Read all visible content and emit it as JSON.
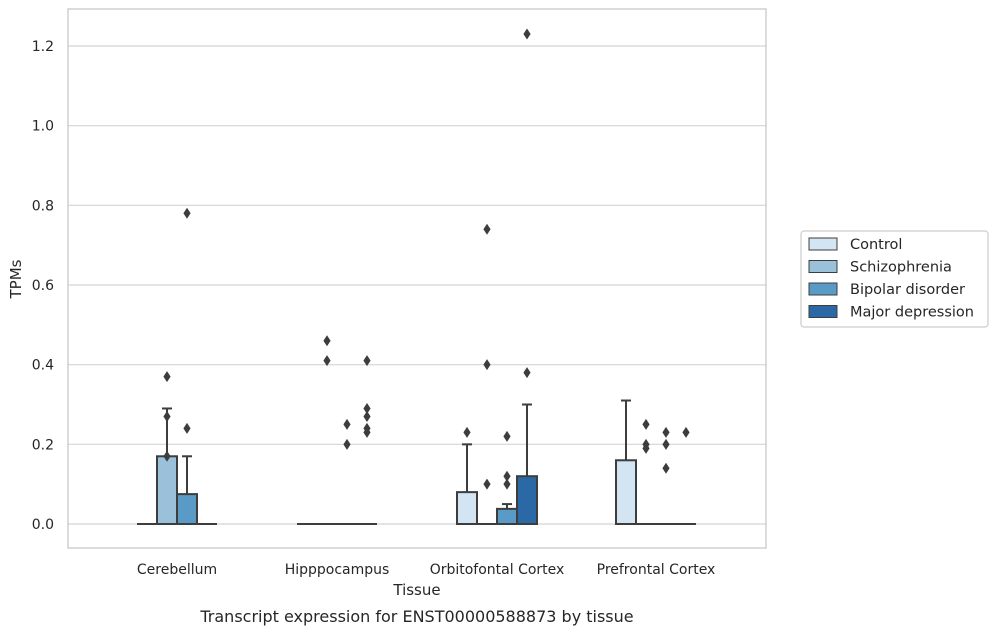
{
  "chart_data": {
    "type": "box",
    "xlabel": "Tissue",
    "ylabel": "TPMs",
    "caption": "Transcript expression for ENST00000588873 by tissue",
    "ylim": [
      -0.06,
      1.29
    ],
    "yticks": [
      0.0,
      0.2,
      0.4,
      0.6,
      0.8,
      1.0,
      1.2
    ],
    "ytick_labels": [
      "0.0",
      "0.2",
      "0.4",
      "0.6",
      "0.8",
      "1.0",
      "1.2"
    ],
    "grid": "horizontal",
    "legend_position": "right",
    "categories": [
      "Cerebellum",
      "Hipppocampus",
      "Orbitofontal Cortex",
      "Prefrontal Cortex"
    ],
    "series": [
      {
        "name": "Control",
        "color": "#d3e4f3",
        "boxes": [
          {
            "q1": 0.0,
            "median": 0.0,
            "q3": 0.0,
            "whisker_low": 0.0,
            "whisker_high": 0.0,
            "outliers": []
          },
          {
            "q1": 0.0,
            "median": 0.0,
            "q3": 0.0,
            "whisker_low": 0.0,
            "whisker_high": 0.0,
            "outliers": []
          },
          {
            "q1": 0.0,
            "median": 0.0,
            "q3": 0.08,
            "whisker_low": 0.0,
            "whisker_high": 0.2,
            "outliers": [
              0.23
            ]
          },
          {
            "q1": 0.0,
            "median": 0.0,
            "q3": 0.16,
            "whisker_low": 0.0,
            "whisker_high": 0.31,
            "outliers": []
          }
        ]
      },
      {
        "name": "Schizophrenia",
        "color": "#9ac0da",
        "boxes": [
          {
            "q1": 0.0,
            "median": 0.0,
            "q3": 0.17,
            "whisker_low": 0.0,
            "whisker_high": 0.29,
            "outliers": [
              0.37,
              0.27,
              0.17
            ]
          },
          {
            "q1": 0.0,
            "median": 0.0,
            "q3": 0.0,
            "whisker_low": 0.0,
            "whisker_high": 0.0,
            "outliers": [
              0.46,
              0.41
            ]
          },
          {
            "q1": 0.0,
            "median": 0.0,
            "q3": 0.0,
            "whisker_low": 0.0,
            "whisker_high": 0.0,
            "outliers": [
              0.74,
              0.4,
              0.1
            ]
          },
          {
            "q1": 0.0,
            "median": 0.0,
            "q3": 0.0,
            "whisker_low": 0.0,
            "whisker_high": 0.0,
            "outliers": [
              0.25,
              0.2,
              0.19
            ]
          }
        ]
      },
      {
        "name": "Bipolar disorder",
        "color": "#5a9ac6",
        "boxes": [
          {
            "q1": 0.0,
            "median": 0.0,
            "q3": 0.075,
            "whisker_low": 0.0,
            "whisker_high": 0.17,
            "outliers": [
              0.78,
              0.24
            ]
          },
          {
            "q1": 0.0,
            "median": 0.0,
            "q3": 0.0,
            "whisker_low": 0.0,
            "whisker_high": 0.0,
            "outliers": [
              0.25,
              0.2
            ]
          },
          {
            "q1": 0.0,
            "median": 0.0,
            "q3": 0.038,
            "whisker_low": 0.0,
            "whisker_high": 0.05,
            "outliers": [
              0.22,
              0.12,
              0.1
            ]
          },
          {
            "q1": 0.0,
            "median": 0.0,
            "q3": 0.0,
            "whisker_low": 0.0,
            "whisker_high": 0.0,
            "outliers": [
              0.23,
              0.2,
              0.14
            ]
          }
        ]
      },
      {
        "name": "Major depression",
        "color": "#2b69a6",
        "boxes": [
          {
            "q1": 0.0,
            "median": 0.0,
            "q3": 0.0,
            "whisker_low": 0.0,
            "whisker_high": 0.0,
            "outliers": []
          },
          {
            "q1": 0.0,
            "median": 0.0,
            "q3": 0.0,
            "whisker_low": 0.0,
            "whisker_high": 0.0,
            "outliers": [
              0.41,
              0.23
            ]
          },
          {
            "q1": 0.0,
            "median": 0.0,
            "q3": 0.12,
            "whisker_low": 0.0,
            "whisker_high": 0.3,
            "outliers": [
              1.23,
              0.38
            ]
          },
          {
            "q1": 0.0,
            "median": 0.0,
            "q3": 0.0,
            "whisker_low": 0.0,
            "whisker_high": 0.0,
            "outliers": [
              0.23
            ]
          }
        ]
      }
    ],
    "extra_outliers": [
      {
        "category": "Hipppocampus",
        "series": "Major depression",
        "values": [
          0.29,
          0.27,
          0.24
        ]
      }
    ]
  }
}
